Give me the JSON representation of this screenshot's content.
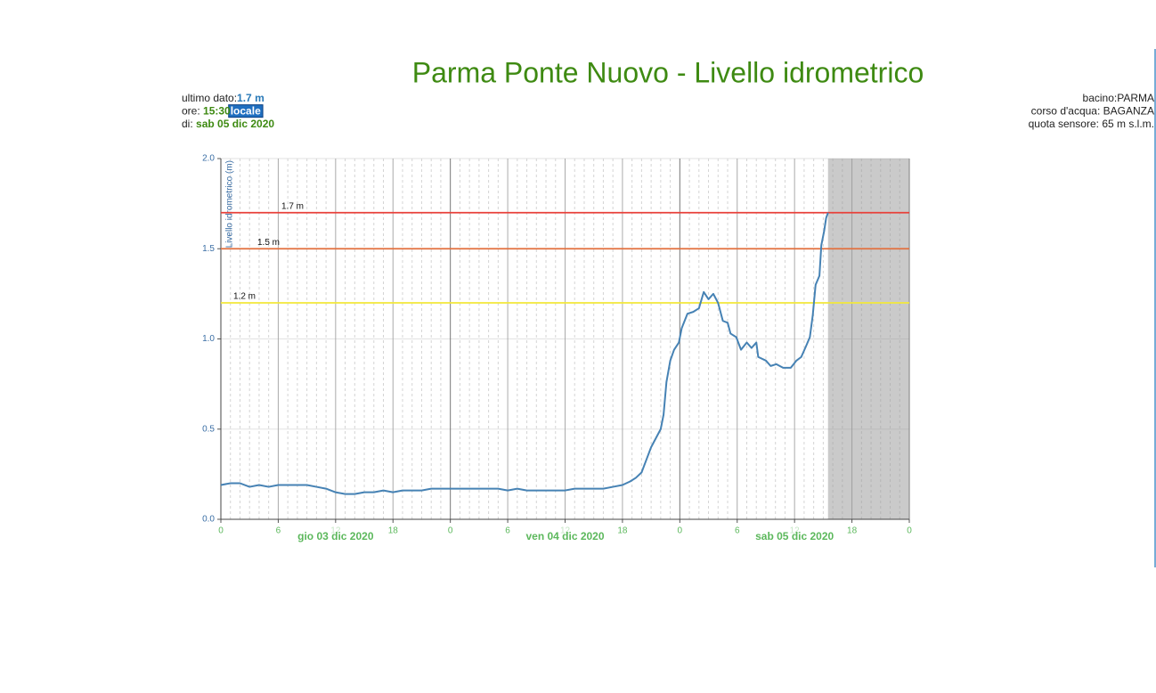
{
  "chart_data": {
    "type": "line",
    "title": "Parma Ponte Nuovo - Livello idrometrico",
    "info_left": [
      {
        "label": "ultimo dato:",
        "value": "1.7 m"
      },
      {
        "label": "ore: ",
        "value": "15:30",
        "tag": "locale"
      },
      {
        "label": "di: ",
        "value": "sab 05 dic 2020"
      }
    ],
    "info_right": [
      "bacino:PARMA",
      "corso d'acqua: BAGANZA",
      "quota sensore: 65 m s.l.m."
    ],
    "ylabel": "Livello idrometrico (m)",
    "xlim": [
      0,
      72
    ],
    "ylim": [
      0,
      2
    ],
    "xticks": [
      0,
      6,
      12,
      18,
      {
        "value": 24,
        "label": "0"
      },
      {
        "value": 30,
        "label": "6"
      },
      {
        "value": 36,
        "label": "12"
      },
      {
        "value": 42,
        "label": "18"
      },
      {
        "value": 48,
        "label": "0"
      },
      {
        "value": 54,
        "label": "6"
      },
      {
        "value": 60,
        "label": "12"
      },
      {
        "value": 66,
        "label": "18"
      },
      {
        "value": 72,
        "label": "0"
      }
    ],
    "yticks": [
      {
        "value": 0,
        "label": "0.0"
      },
      0.5,
      {
        "value": 1,
        "label": "1.0"
      },
      1.5,
      {
        "value": 2,
        "label": "2.0"
      }
    ],
    "day_labels": [
      {
        "label": "gio 03 dic 2020",
        "x": 12
      },
      {
        "label": "ven 04 dic 2020",
        "x": 36
      },
      {
        "label": "sab 05 dic 2020",
        "x": 60
      }
    ],
    "thresholds": [
      {
        "value": 1.7,
        "label": "1.7 m",
        "color": "#e8413a"
      },
      {
        "value": 1.5,
        "label": "1.5 m",
        "color": "#e2703f"
      },
      {
        "value": 1.2,
        "label": "1.2 m",
        "color": "#f2e83a"
      }
    ],
    "grid": true,
    "x": [
      0,
      1,
      2,
      3,
      4,
      5,
      6,
      7,
      8,
      9,
      10,
      11,
      12,
      13,
      14,
      15,
      16,
      17,
      18,
      19,
      20,
      21,
      22,
      23,
      24,
      25,
      26,
      27,
      28,
      29,
      30,
      31,
      32,
      33,
      34,
      35,
      36,
      37,
      38,
      39,
      40,
      41,
      42,
      42.8,
      43.4,
      44,
      44.5,
      45,
      45.5,
      46,
      46.3,
      46.6,
      47,
      47.4,
      47.9,
      48.2,
      48.8,
      49.4,
      50,
      50.5,
      51,
      51.5,
      52,
      52.5,
      53,
      53.3,
      53.9,
      54.4,
      55,
      55.5,
      56,
      56.2,
      57,
      57.5,
      58.1,
      58.8,
      59.6,
      60.2,
      60.7,
      61.2,
      61.6,
      61.9,
      62.2,
      62.6,
      62.8,
      63.1,
      63.3,
      63.5
    ],
    "series": [
      {
        "name": "Livello idrometrico",
        "color": "#4682b4",
        "values": [
          0.19,
          0.2,
          0.2,
          0.18,
          0.19,
          0.18,
          0.19,
          0.19,
          0.19,
          0.19,
          0.18,
          0.17,
          0.15,
          0.14,
          0.14,
          0.15,
          0.15,
          0.16,
          0.15,
          0.16,
          0.16,
          0.16,
          0.17,
          0.17,
          0.17,
          0.17,
          0.17,
          0.17,
          0.17,
          0.17,
          0.16,
          0.17,
          0.16,
          0.16,
          0.16,
          0.16,
          0.16,
          0.17,
          0.17,
          0.17,
          0.17,
          0.18,
          0.19,
          0.21,
          0.23,
          0.26,
          0.33,
          0.4,
          0.45,
          0.5,
          0.58,
          0.76,
          0.88,
          0.94,
          0.98,
          1.06,
          1.14,
          1.15,
          1.17,
          1.26,
          1.22,
          1.25,
          1.2,
          1.1,
          1.09,
          1.03,
          1.01,
          0.94,
          0.98,
          0.95,
          0.98,
          0.9,
          0.88,
          0.85,
          0.86,
          0.84,
          0.84,
          0.88,
          0.9,
          0.96,
          1.01,
          1.13,
          1.3,
          1.35,
          1.52,
          1.6,
          1.67,
          1.7
        ]
      }
    ]
  }
}
